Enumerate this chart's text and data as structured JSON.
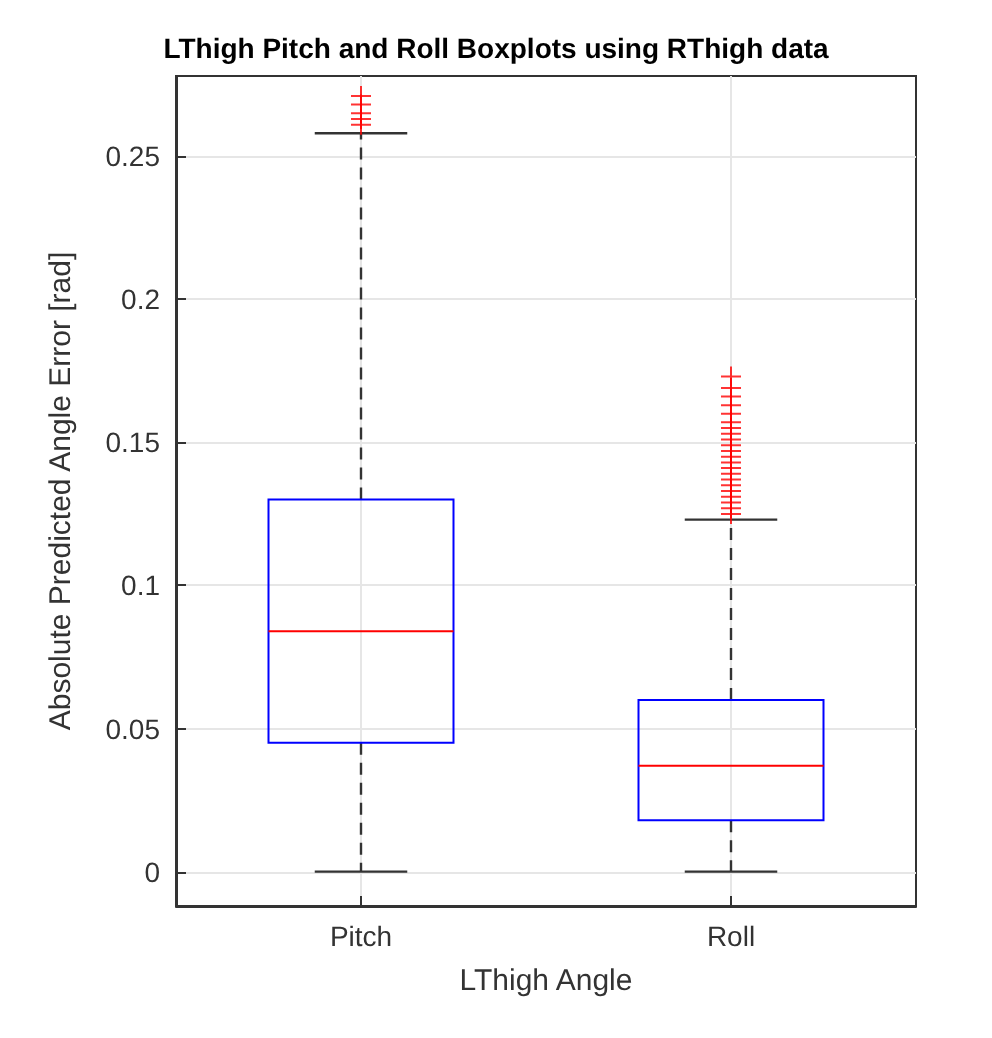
{
  "chart_data": {
    "type": "box",
    "title": "LThigh Pitch and Roll Boxplots using RThigh data",
    "xlabel": "LThigh Angle",
    "ylabel": "Absolute Predicted Angle Error [rad]",
    "categories": [
      "Pitch",
      "Roll"
    ],
    "series": [
      {
        "color": "#0000ff",
        "boxes": [
          {
            "low": 0,
            "q1": 0.045,
            "median": 0.084,
            "q3": 0.13,
            "high": 0.258,
            "outliers": [
              0.261,
              0.263,
              0.265,
              0.268,
              0.271
            ]
          },
          {
            "low": 0,
            "q1": 0.018,
            "median": 0.037,
            "q3": 0.06,
            "high": 0.123,
            "outliers": [
              0.125,
              0.127,
              0.129,
              0.131,
              0.133,
              0.135,
              0.137,
              0.139,
              0.141,
              0.143,
              0.145,
              0.147,
              0.149,
              0.151,
              0.153,
              0.155,
              0.157,
              0.16,
              0.163,
              0.166,
              0.169,
              0.173
            ]
          }
        ]
      }
    ],
    "ylim": [
      -0.012,
      0.278
    ],
    "yticks": [
      0,
      0.05,
      0.1,
      0.15,
      0.2,
      0.25
    ],
    "grid": true,
    "marker": "cross"
  }
}
